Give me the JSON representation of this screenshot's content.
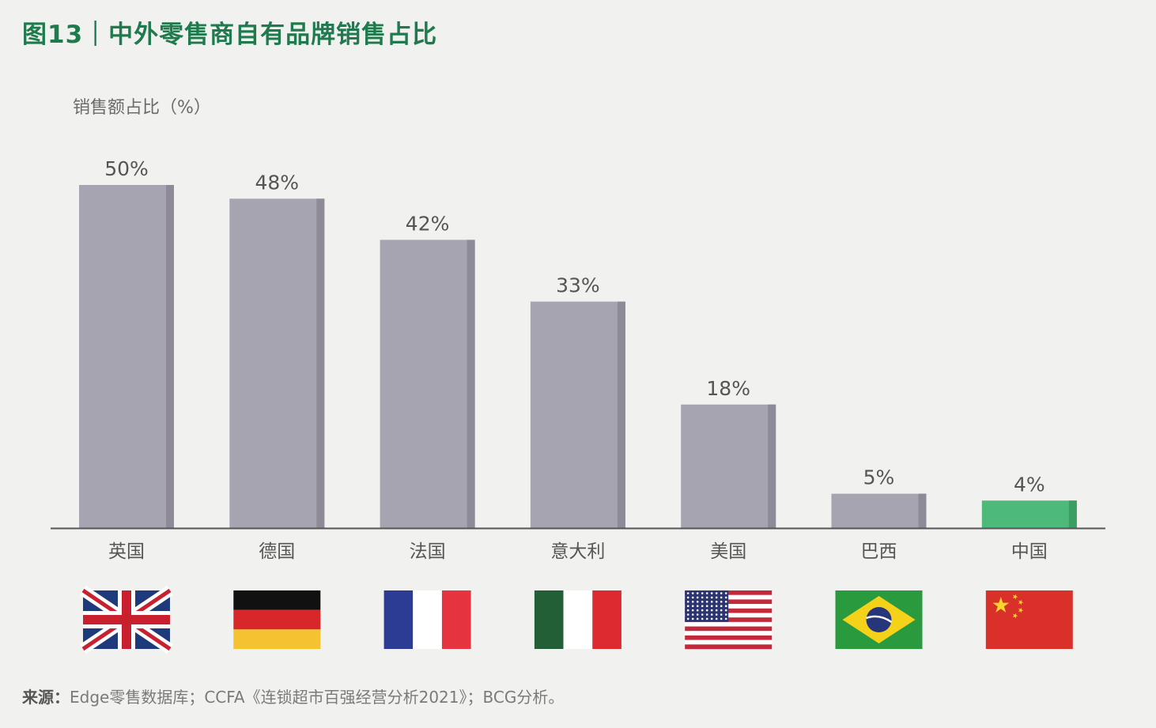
{
  "title": "图13｜中外零售商自有品牌销售占比",
  "source": {
    "label": "来源：",
    "text": "Edge零售数据库；CCFA《连锁超市百强经营分析2021》；BCG分析。"
  },
  "colors": {
    "bar": "#a7a4b1",
    "bar_side": "#8e8a97",
    "highlight": "#4dba7a",
    "highlight_side": "#3a9d62",
    "axis": "#555555",
    "label": "#555555"
  },
  "chart_data": {
    "type": "bar",
    "title": "图13｜中外零售商自有品牌销售占比",
    "ylabel": "销售额占比（%）",
    "xlabel": "",
    "ylim": [
      0,
      50
    ],
    "grid": false,
    "categories": [
      "英国",
      "德国",
      "法国",
      "意大利",
      "美国",
      "巴西",
      "中国"
    ],
    "values": [
      50,
      48,
      42,
      33,
      18,
      5,
      4
    ],
    "value_labels": [
      "50%",
      "48%",
      "42%",
      "33%",
      "18%",
      "5%",
      "4%"
    ],
    "highlight_category": "中国",
    "flags": [
      "uk-flag-icon",
      "germany-flag-icon",
      "france-flag-icon",
      "italy-flag-icon",
      "usa-flag-icon",
      "brazil-flag-icon",
      "china-flag-icon"
    ]
  }
}
